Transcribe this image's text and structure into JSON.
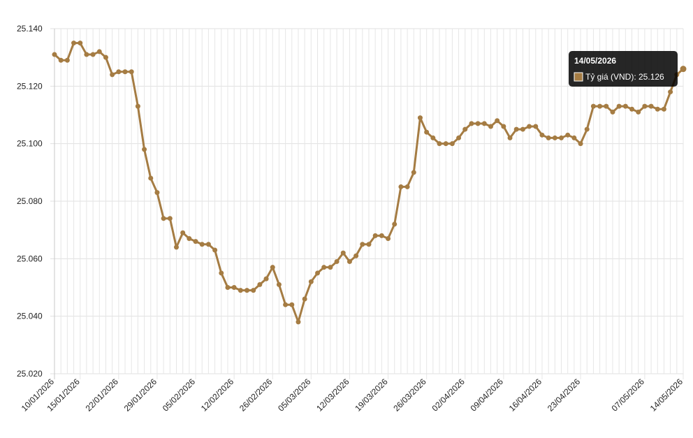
{
  "chart_data": {
    "type": "line",
    "categories": [
      "10/01/2026",
      null,
      null,
      null,
      "15/01/2026",
      null,
      null,
      null,
      null,
      null,
      "22/01/2026",
      null,
      null,
      null,
      null,
      null,
      "29/01/2026",
      null,
      null,
      null,
      null,
      null,
      "05/02/2026",
      null,
      null,
      null,
      null,
      null,
      "12/02/2026",
      null,
      null,
      null,
      null,
      null,
      "26/02/2026",
      null,
      null,
      null,
      null,
      null,
      "05/03/2026",
      null,
      null,
      null,
      null,
      null,
      "12/03/2026",
      null,
      null,
      null,
      null,
      null,
      "19/03/2026",
      null,
      null,
      null,
      null,
      null,
      "26/03/2026",
      null,
      null,
      null,
      null,
      null,
      "02/04/2026",
      null,
      null,
      null,
      null,
      null,
      "09/04/2026",
      null,
      null,
      null,
      null,
      null,
      "16/04/2026",
      null,
      null,
      null,
      null,
      null,
      "23/04/2026",
      null,
      null,
      null,
      null,
      null,
      null,
      null,
      null,
      null,
      "07/05/2026",
      null,
      null,
      null,
      null,
      null,
      "14/05/2026"
    ],
    "series": [
      {
        "name": "Tỷ giá (VND)",
        "color": "#a57c43",
        "values": [
          25131,
          25129,
          25129,
          25135,
          25135,
          25131,
          25131,
          25132,
          25130,
          25124,
          25125,
          25125,
          25125,
          25113,
          25098,
          25088,
          25083,
          25074,
          25074,
          25064,
          25069,
          25067,
          25066,
          25065,
          25065,
          25063,
          25055,
          25050,
          25050,
          25049,
          25049,
          25049,
          25051,
          25053,
          25057,
          25051,
          25044,
          25044,
          25038,
          25046,
          25052,
          25055,
          25057,
          25057,
          25059,
          25062,
          25059,
          25061,
          25065,
          25065,
          25068,
          25068,
          25067,
          25072,
          25085,
          25085,
          25090,
          25109,
          25104,
          25102,
          25100,
          25100,
          25100,
          25102,
          25105,
          25107,
          25107,
          25107,
          25106,
          25108,
          25106,
          25102,
          25105,
          25105,
          25106,
          25106,
          25103,
          25102,
          25102,
          25102,
          25103,
          25102,
          25100,
          25105,
          25113,
          25113,
          25113,
          25111,
          25113,
          25113,
          25112,
          25111,
          25113,
          25113,
          25112,
          25112,
          25118,
          25124,
          25126
        ]
      }
    ],
    "ylim": [
      25020,
      25140
    ],
    "yticks": [
      {
        "value": 25020,
        "label": "25.020"
      },
      {
        "value": 25040,
        "label": "25.040"
      },
      {
        "value": 25060,
        "label": "25.060"
      },
      {
        "value": 25080,
        "label": "25.080"
      },
      {
        "value": 25100,
        "label": "25.100"
      },
      {
        "value": 25120,
        "label": "25.120"
      },
      {
        "value": 25140,
        "label": "25.140"
      }
    ],
    "grid": true,
    "tooltip": {
      "title": "14/05/2026",
      "text": "Tỷ giá (VND): 25.126"
    }
  }
}
